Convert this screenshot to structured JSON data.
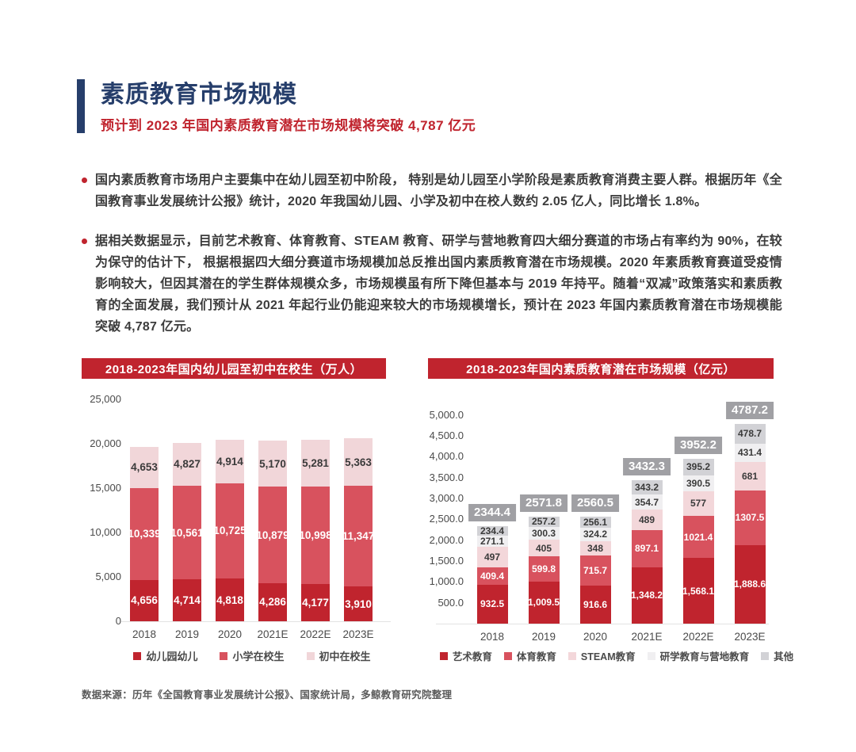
{
  "header": {
    "title": "素质教育市场规模",
    "subtitle": "预计到 2023 年国内素质教育潜在市场规模将突破 4,787 亿元"
  },
  "bullets": [
    "国内素质教育市场用户主要集中在幼儿园至初中阶段， 特别是幼儿园至小学阶段是素质教育消费主要人群。根据历年《全国教育事业发展统计公报》统计，2020 年我国幼儿园、小学及初中在校人数约 2.05 亿人，同比增长 1.8%。",
    "据相关数据显示，目前艺术教育、体育教育、STEAM 教育、研学与营地教育四大细分赛道的市场占有率约为 90%，在较为保守的估计下， 根据根据四大细分赛道市场规模加总反推出国内素质教育潜在市场规模。2020 年素质教育赛道受疫情影响较大，但因其潜在的学生群体规模众多，市场规模虽有所下降但基本与 2019 年持平。随着“双减”政策落实和素质教育的全面发展，我们预计从 2021 年起行业仍能迎来较大的市场规模增长，预计在 2023 年国内素质教育潜在市场规模能突破 4,787 亿元。"
  ],
  "source": "数据来源：历年《全国教育事业发展统计公报》、国家统计局，多鲸教育研究院整理",
  "colors": {
    "accent_red": "#c0242e",
    "navy": "#263e6b",
    "badge_gray": "#a0a0a4",
    "body_text": "#3c3c3c"
  },
  "chart_data": [
    {
      "type": "bar",
      "stacked": true,
      "title": "2018-2023年国内幼儿园至初中在校生（万人）",
      "categories": [
        "2018",
        "2019",
        "2020",
        "2021E",
        "2022E",
        "2023E"
      ],
      "series": [
        {
          "name": "幼儿园幼儿",
          "color": "#c0242e",
          "label_color": "#ffffff",
          "values": [
            4656,
            4714,
            4818,
            4286,
            4177,
            3910
          ],
          "labels": [
            "4,656",
            "4,714",
            "4,818",
            "4,286",
            "4,177",
            "3,910"
          ]
        },
        {
          "name": "小学在校生",
          "color": "#d8525e",
          "label_color": "#ffffff",
          "values": [
            10339,
            10561,
            10725,
            10879,
            10998,
            11347
          ],
          "labels": [
            "10,339",
            "10,561",
            "10,725",
            "10,879",
            "10,998",
            "11,347"
          ]
        },
        {
          "name": "初中在校生",
          "color": "#f1d6d9",
          "label_color": "#3a3a3a",
          "values": [
            4653,
            4827,
            4914,
            5170,
            5281,
            5363
          ],
          "labels": [
            "4,653",
            "4,827",
            "4,914",
            "5,170",
            "5,281",
            "5,363"
          ]
        }
      ],
      "yticks": [
        {
          "value": 0,
          "label": "0"
        },
        {
          "value": 5000,
          "label": "5,000"
        },
        {
          "value": 10000,
          "label": "10,000"
        },
        {
          "value": 15000,
          "label": "15,000"
        },
        {
          "value": 20000,
          "label": "20,000"
        },
        {
          "value": 25000,
          "label": "25,000"
        }
      ],
      "ylim": [
        0,
        25000
      ],
      "grid": false,
      "legend_position": "bottom"
    },
    {
      "type": "bar",
      "stacked": true,
      "title": "2018-2023年国内素质教育潜在市场规模（亿元）",
      "categories": [
        "2018",
        "2019",
        "2020",
        "2021E",
        "2022E",
        "2023E"
      ],
      "series": [
        {
          "name": "艺术教育",
          "color": "#c0242e",
          "label_color": "#ffffff",
          "values": [
            932.5,
            1009.5,
            916.6,
            1348.2,
            1568.1,
            1888.6
          ],
          "labels": [
            "932.5",
            "1,009.5",
            "916.6",
            "1,348.2",
            "1,568.1",
            "1,888.6"
          ]
        },
        {
          "name": "体育教育",
          "color": "#d8525e",
          "label_color": "#ffffff",
          "values": [
            409.4,
            599.8,
            715.7,
            897.1,
            1021.4,
            1307.5
          ],
          "labels": [
            "409.4",
            "599.8",
            "715.7",
            "897.1",
            "1021.4",
            "1307.5"
          ]
        },
        {
          "name": "STEAM教育",
          "color": "#f3d7da",
          "label_color": "#3a3a3a",
          "values": [
            497,
            405,
            348,
            489,
            577,
            681
          ],
          "labels": [
            "497",
            "405",
            "348",
            "489",
            "577",
            "681"
          ]
        },
        {
          "name": "研学教育与营地教育",
          "color": "#f0eff1",
          "label_color": "#3a3a3a",
          "values": [
            271.1,
            300.3,
            324.2,
            354.7,
            390.5,
            431.4
          ],
          "labels": [
            "271.1",
            "300.3",
            "324.2",
            "354.7",
            "390.5",
            "431.4"
          ]
        },
        {
          "name": "其他",
          "color": "#d2d2d6",
          "label_color": "#3a3a3a",
          "values": [
            234.4,
            257.2,
            256.1,
            343.2,
            395.2,
            478.7
          ],
          "labels": [
            "234.4",
            "257.2",
            "256.1",
            "343.2",
            "395.2",
            "478.7"
          ]
        }
      ],
      "totals": {
        "values": [
          2344.4,
          2571.8,
          2560.5,
          3432.3,
          3952.2,
          4787.2
        ],
        "labels": [
          "2344.4",
          "2571.8",
          "2560.5",
          "3432.3",
          "3952.2",
          "4787.2"
        ]
      },
      "yticks": [
        {
          "value": 500,
          "label": "500.0"
        },
        {
          "value": 1000,
          "label": "1,000.0"
        },
        {
          "value": 1500,
          "label": "1,500.0"
        },
        {
          "value": 2000,
          "label": "2,000.0"
        },
        {
          "value": 2500,
          "label": "2,500.0"
        },
        {
          "value": 3000,
          "label": "3,000.0"
        },
        {
          "value": 3500,
          "label": "3,500.0"
        },
        {
          "value": 4000,
          "label": "4,000.0"
        },
        {
          "value": 4500,
          "label": "4,500.0"
        },
        {
          "value": 5000,
          "label": "5,000.0"
        }
      ],
      "ylim": [
        0,
        5250
      ],
      "grid": false,
      "legend_position": "bottom"
    }
  ]
}
